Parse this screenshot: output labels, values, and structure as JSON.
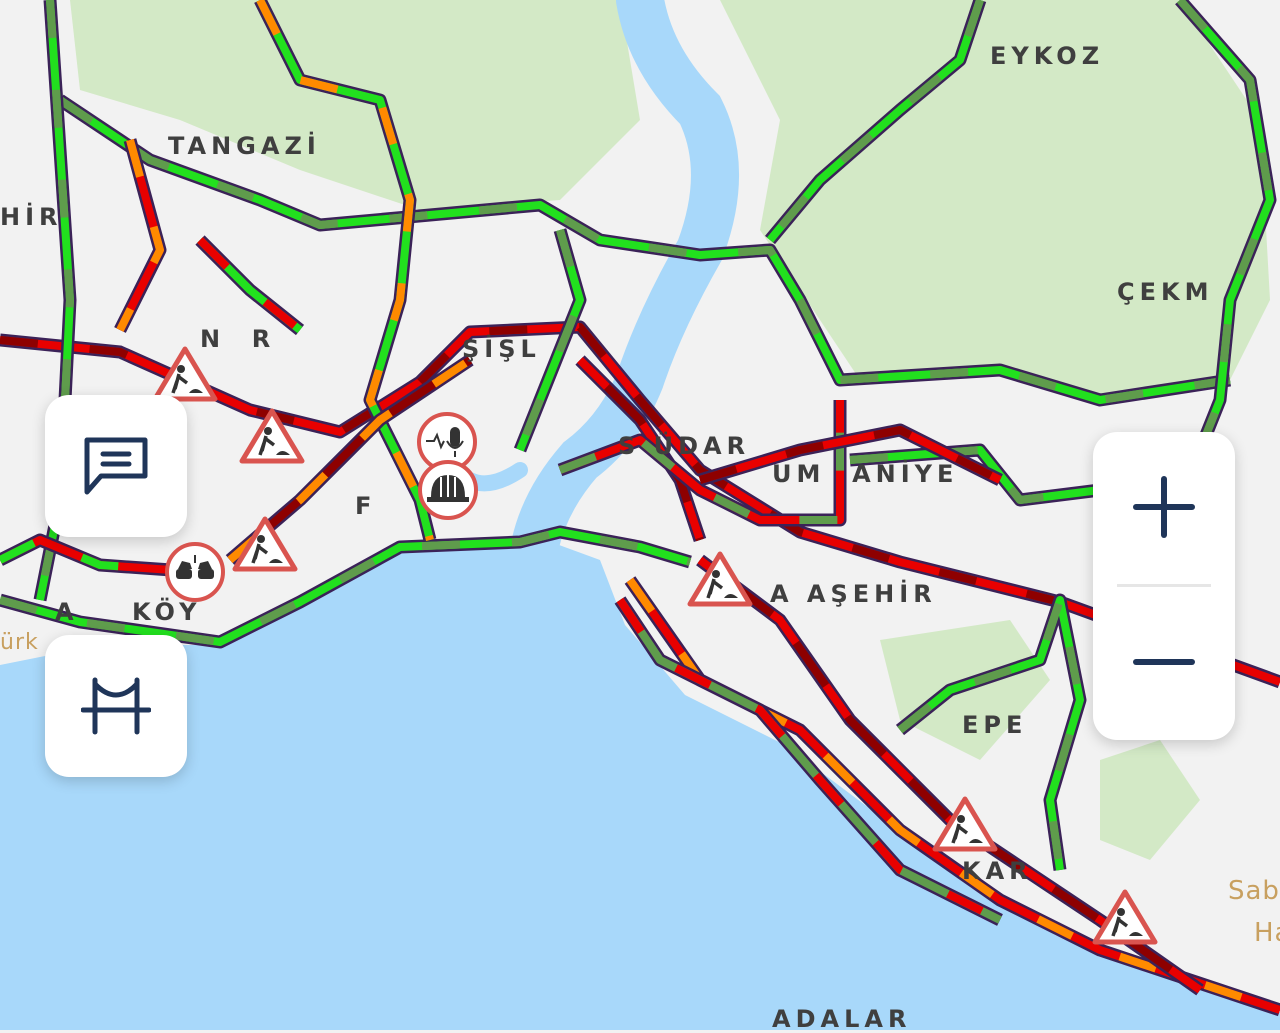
{
  "map": {
    "colors": {
      "water": "#a8d8fa",
      "land": "#f2f2f2",
      "park": "#d3e9c6",
      "free_flow": "#22e01e",
      "moderate": "#5f9c4c",
      "slow": "#ff8a00",
      "heavy": "#e80000",
      "jammed": "#8e0000",
      "outline": "#3b2258"
    },
    "labels": [
      {
        "text": "EYKOZ"
      },
      {
        "text": "TANGAZİ"
      },
      {
        "text": "HİR"
      },
      {
        "text": "ÇEKM"
      },
      {
        "text": "N  R"
      },
      {
        "text": "ŞİŞL"
      },
      {
        "text": "S ÜDAR"
      },
      {
        "text": "UM  ANİYE"
      },
      {
        "text": "F"
      },
      {
        "text": "A AŞEHİR"
      },
      {
        "text": "EPE"
      },
      {
        "text": "KAR"
      },
      {
        "text": "A    KÖY"
      },
      {
        "text": "ADALAR"
      },
      {
        "text": "Sab"
      },
      {
        "text": "Ha"
      },
      {
        "text": "ürk"
      }
    ],
    "incidents": [
      {
        "type": "roadwork",
        "icon": "roadwork-icon"
      },
      {
        "type": "roadwork",
        "icon": "roadwork-icon"
      },
      {
        "type": "roadwork",
        "icon": "roadwork-icon"
      },
      {
        "type": "roadwork",
        "icon": "roadwork-icon"
      },
      {
        "type": "roadwork",
        "icon": "roadwork-icon"
      },
      {
        "type": "roadwork",
        "icon": "roadwork-icon"
      },
      {
        "type": "accident",
        "icon": "car-crash-icon"
      },
      {
        "type": "announcement",
        "icon": "audio-announcement-icon"
      },
      {
        "type": "maintenance",
        "icon": "helmet-icon"
      }
    ]
  },
  "controls": {
    "messages_icon": "chat-bubble-icon",
    "bridges_icon": "bridge-icon",
    "zoom_in_icon": "plus-icon",
    "zoom_out_icon": "minus-icon"
  }
}
